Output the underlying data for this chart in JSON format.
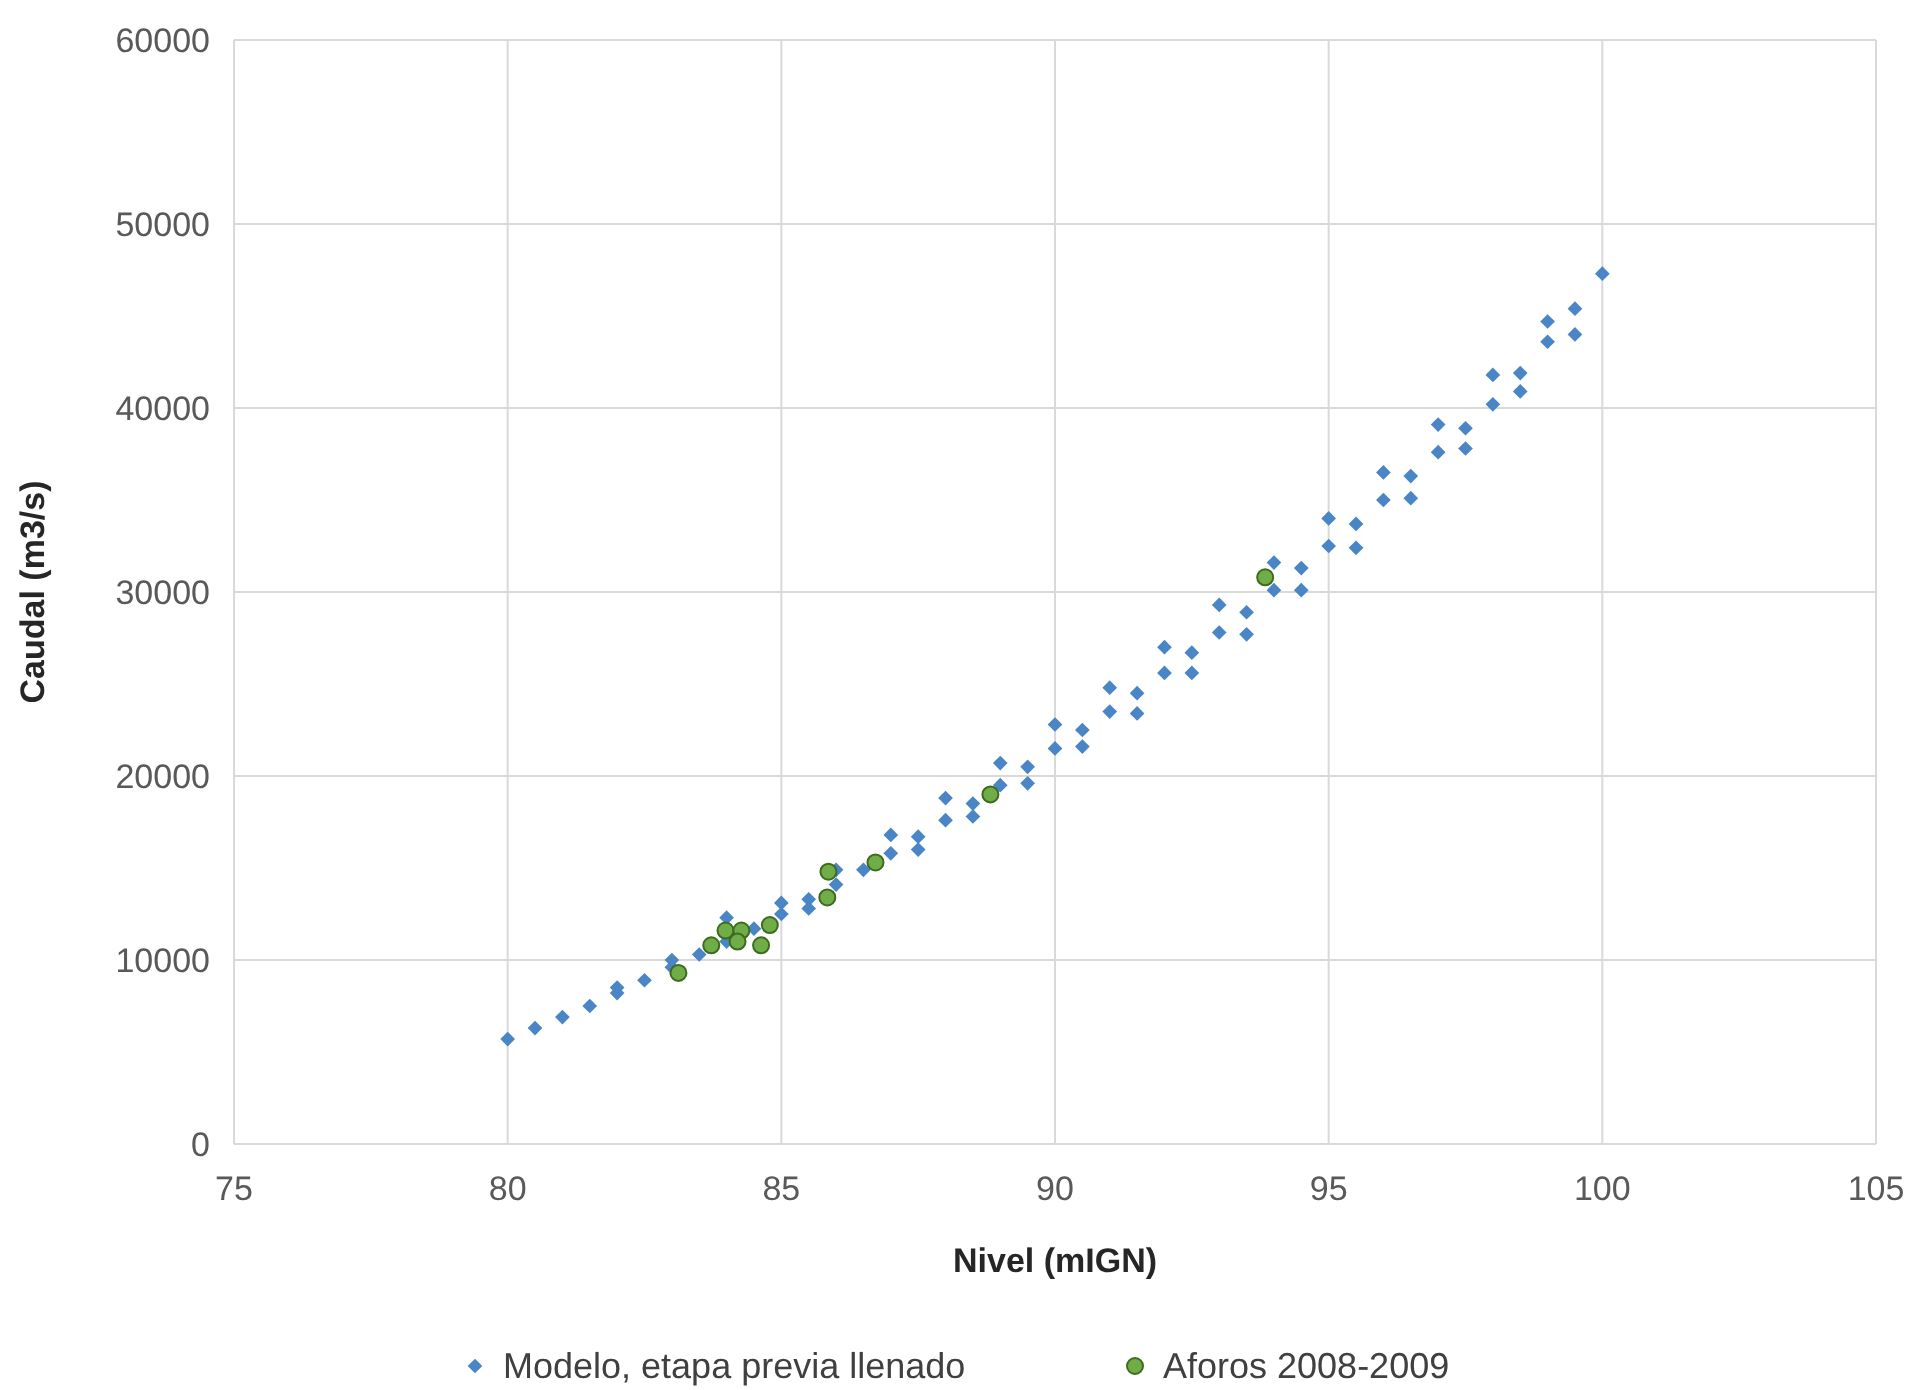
{
  "chart_data": {
    "type": "scatter",
    "xlabel": "Nivel (mIGN)",
    "ylabel": "Caudal (m3/s)",
    "xlim": [
      75,
      105
    ],
    "ylim": [
      0,
      60000
    ],
    "xticks": [
      75,
      80,
      85,
      90,
      95,
      100,
      105
    ],
    "yticks": [
      0,
      10000,
      20000,
      30000,
      40000,
      50000,
      60000
    ],
    "grid": true,
    "legend": "bottom",
    "series": [
      {
        "name": "Modelo, etapa previa llenado",
        "color": "#4a86c5",
        "marker": "diamond",
        "x": [
          80,
          80.5,
          81,
          81.5,
          82,
          82.5,
          83,
          83.5,
          84,
          84.5,
          85,
          85.5,
          86,
          86.5,
          87,
          87.5,
          88,
          88.5,
          89,
          89.5,
          90,
          90.5,
          91,
          91.5,
          92,
          92.5,
          93,
          93.5,
          94,
          94.5,
          95,
          95.5,
          96,
          96.5,
          97,
          97.5,
          98,
          98.5,
          99,
          99.5,
          100,
          82,
          83,
          84,
          85,
          86,
          87,
          88,
          89,
          90,
          91,
          92,
          93,
          94,
          95,
          96,
          97,
          98,
          99,
          85.5,
          87.5,
          88.5,
          89.5,
          90.5,
          91.5,
          92.5,
          93.5,
          94.5,
          95.5,
          96.5,
          97.5,
          98.5,
          99.5
        ],
        "values": [
          5700,
          6300,
          6900,
          7500,
          8200,
          8900,
          9600,
          10300,
          11000,
          11700,
          12500,
          13300,
          14100,
          14900,
          15800,
          16700,
          17600,
          18500,
          19500,
          20500,
          21500,
          22500,
          23500,
          24500,
          25600,
          26700,
          27800,
          28900,
          30100,
          31300,
          32500,
          33700,
          35000,
          36300,
          37600,
          38900,
          40200,
          41900,
          43600,
          45400,
          47300,
          8500,
          10000,
          12300,
          13100,
          14900,
          16800,
          18800,
          20700,
          22800,
          24800,
          27000,
          29300,
          31600,
          34000,
          36500,
          39100,
          41800,
          44700,
          12800,
          16000,
          17800,
          19600,
          21600,
          23400,
          25600,
          27700,
          30100,
          32400,
          35100,
          37800,
          40900,
          44000
        ]
      },
      {
        "name": "Aforos 2008-2009",
        "color": "#70ad47",
        "marker": "circle",
        "x": [
          83.12,
          83.72,
          83.98,
          84.27,
          84.2,
          84.79,
          84.63,
          85.86,
          85.84,
          86.72,
          88.82,
          93.84
        ],
        "values": [
          9300,
          10800,
          11600,
          11600,
          11000,
          11900,
          10800,
          14800,
          13400,
          15300,
          19000,
          30800
        ]
      }
    ]
  }
}
